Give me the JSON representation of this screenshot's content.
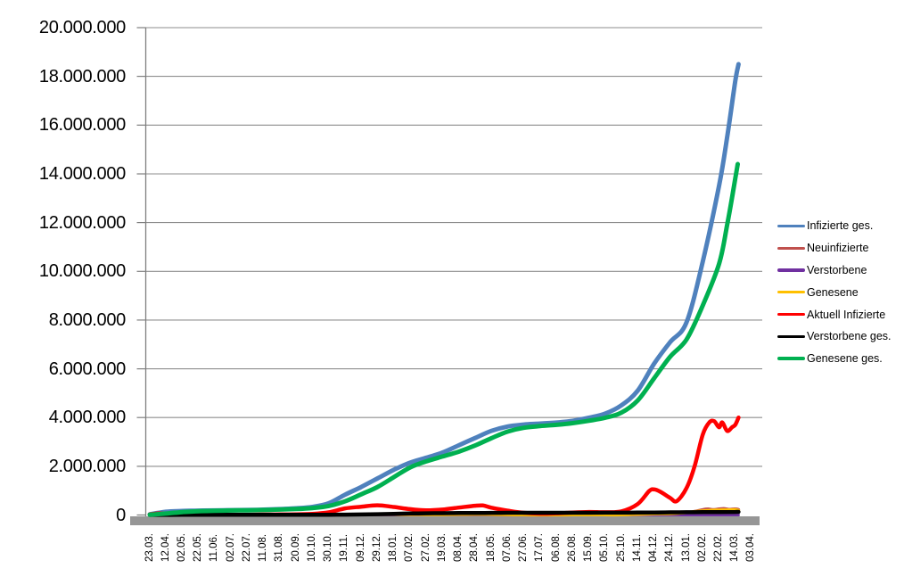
{
  "colors": {
    "grid": "#8E8E8E",
    "axis": "#7F7F7F",
    "axis_bar": "#969696",
    "text": "#000000",
    "background": "#FFFFFF"
  },
  "chart_data": {
    "type": "line",
    "title": "",
    "xlabel": "",
    "ylabel": "",
    "grid": true,
    "legend_position": "right",
    "ylim": [
      0,
      20000000
    ],
    "y_ticks": [
      {
        "value": 0,
        "label": "0"
      },
      {
        "value": 2000000,
        "label": "2.000.000"
      },
      {
        "value": 4000000,
        "label": "4.000.000"
      },
      {
        "value": 6000000,
        "label": "6.000.000"
      },
      {
        "value": 8000000,
        "label": "8.000.000"
      },
      {
        "value": 10000000,
        "label": "10.000.000"
      },
      {
        "value": 12000000,
        "label": "12.000.000"
      },
      {
        "value": 14000000,
        "label": "14.000.000"
      },
      {
        "value": 16000000,
        "label": "16.000.000"
      },
      {
        "value": 18000000,
        "label": "18.000.000"
      },
      {
        "value": 20000000,
        "label": "20.000.000"
      }
    ],
    "x_tick_labels": [
      "23.03.",
      "12.04.",
      "02.05.",
      "22.05.",
      "11.06.",
      "02.07.",
      "22.07.",
      "11.08.",
      "31.08.",
      "20.09.",
      "10.10.",
      "30.10.",
      "19.11.",
      "09.12.",
      "29.12.",
      "18.01.",
      "07.02.",
      "27.02.",
      "19.03.",
      "08.04.",
      "28.04.",
      "18.05.",
      "07.06.",
      "27.06.",
      "17.07.",
      "06.08.",
      "26.08.",
      "15.09.",
      "05.10.",
      "25.10.",
      "14.11.",
      "04.12.",
      "24.12.",
      "13.01.",
      "02.02.",
      "22.02.",
      "14.03.",
      "03.04."
    ],
    "series": [
      {
        "name": "Infizierte ges.",
        "slug": "infizierte-ges",
        "color": "#4F81BD",
        "width": 5,
        "points": [
          [
            0,
            30000
          ],
          [
            1,
            130000
          ],
          [
            2,
            163000
          ],
          [
            3,
            178000
          ],
          [
            4,
            188000
          ],
          [
            5,
            197000
          ],
          [
            6,
            206000
          ],
          [
            7,
            220000
          ],
          [
            8,
            243000
          ],
          [
            9,
            275000
          ],
          [
            10,
            330000
          ],
          [
            11,
            480000
          ],
          [
            12,
            830000
          ],
          [
            13,
            1150000
          ],
          [
            14,
            1500000
          ],
          [
            15,
            1850000
          ],
          [
            16,
            2150000
          ],
          [
            17,
            2350000
          ],
          [
            18,
            2560000
          ],
          [
            19,
            2860000
          ],
          [
            20,
            3160000
          ],
          [
            21,
            3450000
          ],
          [
            22,
            3630000
          ],
          [
            23,
            3710000
          ],
          [
            24,
            3750000
          ],
          [
            25,
            3790000
          ],
          [
            26,
            3860000
          ],
          [
            27,
            3990000
          ],
          [
            28,
            4160000
          ],
          [
            29,
            4500000
          ],
          [
            30,
            5100000
          ],
          [
            31,
            6200000
          ],
          [
            32,
            7100000
          ],
          [
            33,
            7900000
          ],
          [
            34,
            10400000
          ],
          [
            35,
            13500000
          ],
          [
            35.5,
            15500000
          ],
          [
            36,
            17800000
          ],
          [
            36.2,
            18500000
          ]
        ]
      },
      {
        "name": "Neuinfizierte",
        "slug": "neuinfizierte",
        "color": "#C0504D",
        "width": 3.5,
        "points": [
          [
            0,
            4000
          ],
          [
            1,
            4000
          ],
          [
            2,
            2500
          ],
          [
            4,
            1000
          ],
          [
            6,
            800
          ],
          [
            8,
            1500
          ],
          [
            10,
            4000
          ],
          [
            11,
            13000
          ],
          [
            12,
            20000
          ],
          [
            13,
            23000
          ],
          [
            14,
            25000
          ],
          [
            15,
            15000
          ],
          [
            16,
            9000
          ],
          [
            17,
            8000
          ],
          [
            18,
            14000
          ],
          [
            19,
            20000
          ],
          [
            20,
            22000
          ],
          [
            21,
            12000
          ],
          [
            22,
            5000
          ],
          [
            23,
            2000
          ],
          [
            24,
            1500
          ],
          [
            25,
            3000
          ],
          [
            26,
            7000
          ],
          [
            27,
            9000
          ],
          [
            28,
            8000
          ],
          [
            29,
            12000
          ],
          [
            30,
            42000
          ],
          [
            31,
            56000
          ],
          [
            32,
            40000
          ],
          [
            33,
            85000
          ],
          [
            33.5,
            145000
          ],
          [
            34,
            215000
          ],
          [
            34.3,
            250000
          ],
          [
            34.6,
            220000
          ],
          [
            35,
            245000
          ],
          [
            35.3,
            260000
          ],
          [
            35.6,
            230000
          ],
          [
            36,
            250000
          ],
          [
            36.2,
            225000
          ]
        ]
      },
      {
        "name": "Verstorbene",
        "slug": "verstorbene",
        "color": "#7030A0",
        "width": 3,
        "points": [
          [
            0,
            600
          ],
          [
            5,
            300
          ],
          [
            10,
            400
          ],
          [
            14,
            900
          ],
          [
            16,
            800
          ],
          [
            20,
            400
          ],
          [
            25,
            150
          ],
          [
            30,
            350
          ],
          [
            33,
            400
          ],
          [
            35,
            350
          ],
          [
            36.2,
            350
          ]
        ]
      },
      {
        "name": "Genesene",
        "slug": "genesene",
        "color": "#FFC000",
        "width": 3.5,
        "points": [
          [
            0,
            3000
          ],
          [
            1,
            6000
          ],
          [
            2,
            4500
          ],
          [
            4,
            2500
          ],
          [
            6,
            1800
          ],
          [
            8,
            2200
          ],
          [
            10,
            4500
          ],
          [
            11,
            9000
          ],
          [
            12,
            16000
          ],
          [
            13,
            20000
          ],
          [
            14,
            23000
          ],
          [
            15,
            21000
          ],
          [
            16,
            18000
          ],
          [
            17,
            15000
          ],
          [
            18,
            16000
          ],
          [
            19,
            21000
          ],
          [
            20,
            24000
          ],
          [
            21,
            21000
          ],
          [
            22,
            13000
          ],
          [
            23,
            6500
          ],
          [
            24,
            3500
          ],
          [
            25,
            4000
          ],
          [
            26,
            6000
          ],
          [
            27,
            7500
          ],
          [
            28,
            6500
          ],
          [
            29,
            8000
          ],
          [
            30,
            26000
          ],
          [
            31,
            46000
          ],
          [
            32,
            56000
          ],
          [
            33,
            100000
          ],
          [
            34,
            170000
          ],
          [
            34.5,
            190000
          ],
          [
            35,
            200000
          ],
          [
            35.5,
            210000
          ],
          [
            36,
            215000
          ],
          [
            36.2,
            190000
          ]
        ]
      },
      {
        "name": "Aktuell Infizierte",
        "slug": "aktuell-infizierte",
        "color": "#FF0000",
        "width": 4.5,
        "points": [
          [
            0,
            25000
          ],
          [
            0.5,
            65000
          ],
          [
            1,
            60000
          ],
          [
            1.5,
            45000
          ],
          [
            2,
            33000
          ],
          [
            3,
            20000
          ],
          [
            4,
            12000
          ],
          [
            5,
            10000
          ],
          [
            6,
            12000
          ],
          [
            7,
            17000
          ],
          [
            8,
            21000
          ],
          [
            9,
            27000
          ],
          [
            10,
            45000
          ],
          [
            11,
            110000
          ],
          [
            12,
            270000
          ],
          [
            13,
            340000
          ],
          [
            14,
            400000
          ],
          [
            15,
            330000
          ],
          [
            16,
            240000
          ],
          [
            17,
            190000
          ],
          [
            18,
            225000
          ],
          [
            19,
            305000
          ],
          [
            20,
            380000
          ],
          [
            20.5,
            390000
          ],
          [
            21,
            300000
          ],
          [
            22,
            180000
          ],
          [
            23,
            90000
          ],
          [
            24,
            55000
          ],
          [
            25,
            70000
          ],
          [
            26,
            100000
          ],
          [
            27,
            125000
          ],
          [
            28,
            115000
          ],
          [
            29,
            150000
          ],
          [
            30,
            450000
          ],
          [
            30.7,
            980000
          ],
          [
            31,
            1050000
          ],
          [
            31.4,
            950000
          ],
          [
            32,
            700000
          ],
          [
            32.4,
            570000
          ],
          [
            33,
            1100000
          ],
          [
            33.5,
            2000000
          ],
          [
            34,
            3300000
          ],
          [
            34.4,
            3800000
          ],
          [
            34.7,
            3850000
          ],
          [
            35,
            3600000
          ],
          [
            35.2,
            3800000
          ],
          [
            35.5,
            3450000
          ],
          [
            35.8,
            3600000
          ],
          [
            36,
            3700000
          ],
          [
            36.2,
            4000000
          ]
        ]
      },
      {
        "name": "Verstorbene ges.",
        "slug": "verstorbene-ges",
        "color": "#000000",
        "width": 4.5,
        "points": [
          [
            0,
            2000
          ],
          [
            2,
            7000
          ],
          [
            4,
            9000
          ],
          [
            6,
            9200
          ],
          [
            8,
            9400
          ],
          [
            10,
            10000
          ],
          [
            11,
            11500
          ],
          [
            12,
            15000
          ],
          [
            13,
            22000
          ],
          [
            14,
            34000
          ],
          [
            15,
            48000
          ],
          [
            16,
            61000
          ],
          [
            17,
            69000
          ],
          [
            18,
            75000
          ],
          [
            19,
            79000
          ],
          [
            20,
            83000
          ],
          [
            21,
            87000
          ],
          [
            22,
            90000
          ],
          [
            23,
            91000
          ],
          [
            24,
            91500
          ],
          [
            25,
            92000
          ],
          [
            26,
            92500
          ],
          [
            27,
            93200
          ],
          [
            28,
            94000
          ],
          [
            29,
            95500
          ],
          [
            30,
            98000
          ],
          [
            31,
            102000
          ],
          [
            32,
            108000
          ],
          [
            33,
            113000
          ],
          [
            34,
            118000
          ],
          [
            35,
            122000
          ],
          [
            36,
            126000
          ],
          [
            36.2,
            128000
          ]
        ]
      },
      {
        "name": "Genesene ges.",
        "slug": "genesene-ges",
        "color": "#00B050",
        "width": 5,
        "points": [
          [
            0,
            10000
          ],
          [
            1,
            60000
          ],
          [
            2,
            120000
          ],
          [
            3,
            158000
          ],
          [
            4,
            172000
          ],
          [
            5,
            185000
          ],
          [
            6,
            194000
          ],
          [
            7,
            205000
          ],
          [
            8,
            222000
          ],
          [
            9,
            247000
          ],
          [
            10,
            287000
          ],
          [
            11,
            370000
          ],
          [
            12,
            560000
          ],
          [
            13,
            850000
          ],
          [
            14,
            1150000
          ],
          [
            15,
            1550000
          ],
          [
            16,
            1950000
          ],
          [
            17,
            2200000
          ],
          [
            18,
            2400000
          ],
          [
            19,
            2600000
          ],
          [
            20,
            2850000
          ],
          [
            21,
            3150000
          ],
          [
            22,
            3420000
          ],
          [
            23,
            3580000
          ],
          [
            24,
            3650000
          ],
          [
            25,
            3700000
          ],
          [
            26,
            3770000
          ],
          [
            27,
            3870000
          ],
          [
            28,
            3990000
          ],
          [
            29,
            4200000
          ],
          [
            30,
            4700000
          ],
          [
            31,
            5600000
          ],
          [
            32,
            6500000
          ],
          [
            33,
            7200000
          ],
          [
            34,
            8600000
          ],
          [
            35,
            10300000
          ],
          [
            35.5,
            11900000
          ],
          [
            36,
            13800000
          ],
          [
            36.15,
            14400000
          ]
        ]
      }
    ]
  }
}
